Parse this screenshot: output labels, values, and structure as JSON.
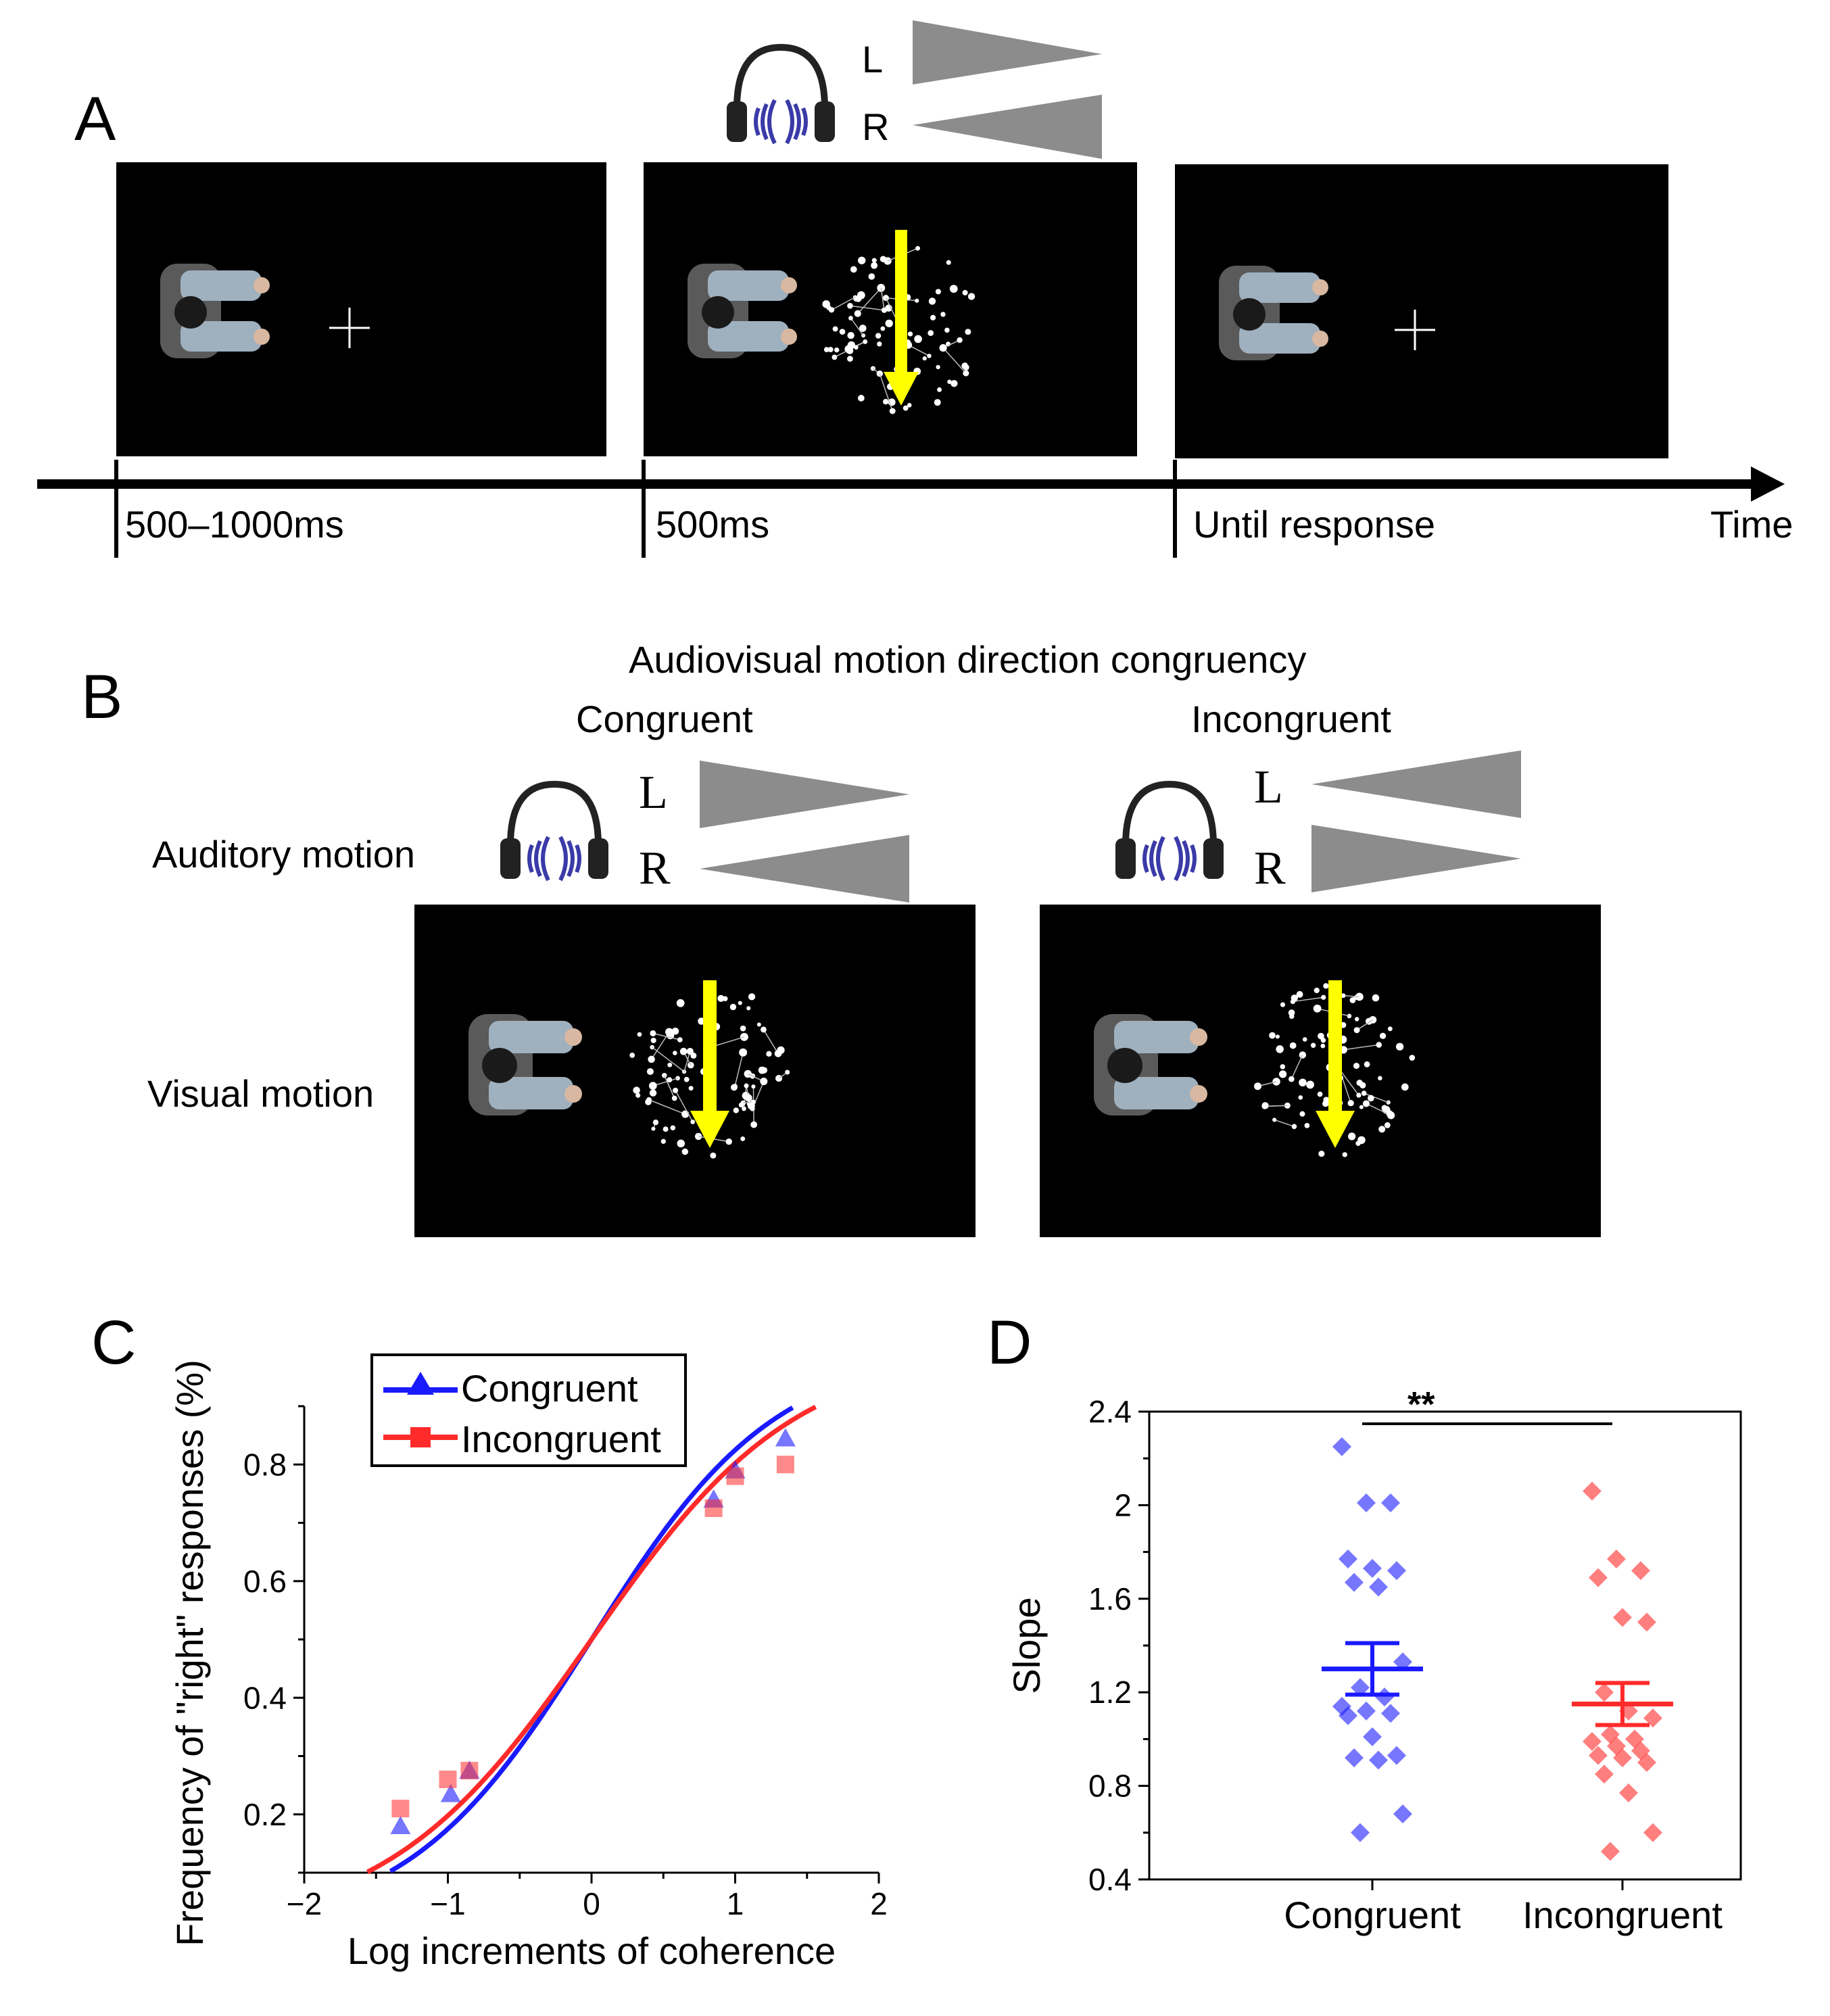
{
  "panelA": {
    "letter": "A",
    "headphone_labels": {
      "left": "L",
      "right": "R"
    },
    "durations": [
      "500–1000ms",
      "500ms",
      "Until response"
    ],
    "axis_label": "Time"
  },
  "panelB": {
    "letter": "B",
    "title": "Audiovisual motion direction congruency",
    "conditions": [
      "Congruent",
      "Incongruent"
    ],
    "row_labels": [
      "Auditory motion",
      "Visual motion"
    ],
    "headphone_labels": {
      "left": "L",
      "right": "R"
    }
  },
  "panelC": {
    "letter": "C",
    "legend": [
      "Congruent",
      "Incongruent"
    ]
  },
  "panelD": {
    "letter": "D",
    "significance": "**"
  },
  "colors": {
    "congruent": "#1a1aff",
    "incongruent": "#ff2a2a",
    "arrow": "#ffff00",
    "triangle": "#8c8c8c"
  },
  "chart_data": [
    {
      "type": "line",
      "title": "",
      "xlabel": "Log increments of coherence",
      "ylabel": "Frequency of \"right\" responses (%)",
      "xlim": [
        -2,
        2
      ],
      "ylim": [
        0.1,
        0.9
      ],
      "xticks": [
        "−2",
        "−1",
        "0",
        "1",
        "2"
      ],
      "yticks": [
        "0.2",
        "0.4",
        "0.6",
        "0.8"
      ],
      "series": [
        {
          "name": "Congruent",
          "marker": "triangle",
          "x": [
            -1.33,
            -0.98,
            -0.85,
            0.85,
            1.0,
            1.35
          ],
          "y": [
            0.18,
            0.235,
            0.275,
            0.74,
            0.79,
            0.845
          ],
          "fit_slope": 1.55
        },
        {
          "name": "Incongruent",
          "marker": "square",
          "x": [
            -1.33,
            -1.0,
            -0.85,
            0.85,
            1.0,
            1.35
          ],
          "y": [
            0.21,
            0.26,
            0.275,
            0.725,
            0.78,
            0.8
          ],
          "fit_slope": 1.4
        }
      ]
    },
    {
      "type": "scatter",
      "title": "",
      "xlabel": "",
      "ylabel": "Slope",
      "categories": [
        "Congruent",
        "Incongruent"
      ],
      "ylim": [
        0.4,
        2.4
      ],
      "yticks": [
        "0.4",
        "0.8",
        "1.2",
        "1.6",
        "2",
        "2.4"
      ],
      "series": [
        {
          "name": "Congruent",
          "mean": 1.3,
          "sem_low": 1.19,
          "sem_high": 1.41,
          "values": [
            2.25,
            2.01,
            2.01,
            1.77,
            1.73,
            1.72,
            1.67,
            1.65,
            1.33,
            1.22,
            1.18,
            1.14,
            1.12,
            1.11,
            1.1,
            1.01,
            0.93,
            0.92,
            0.91,
            0.68,
            0.6
          ]
        },
        {
          "name": "Incongruent",
          "mean": 1.15,
          "sem_low": 1.06,
          "sem_high": 1.24,
          "values": [
            2.06,
            1.77,
            1.72,
            1.69,
            1.52,
            1.5,
            1.2,
            1.12,
            1.09,
            1.02,
            1.0,
            0.99,
            0.97,
            0.95,
            0.93,
            0.92,
            0.9,
            0.85,
            0.77,
            0.6,
            0.52
          ]
        }
      ]
    }
  ]
}
